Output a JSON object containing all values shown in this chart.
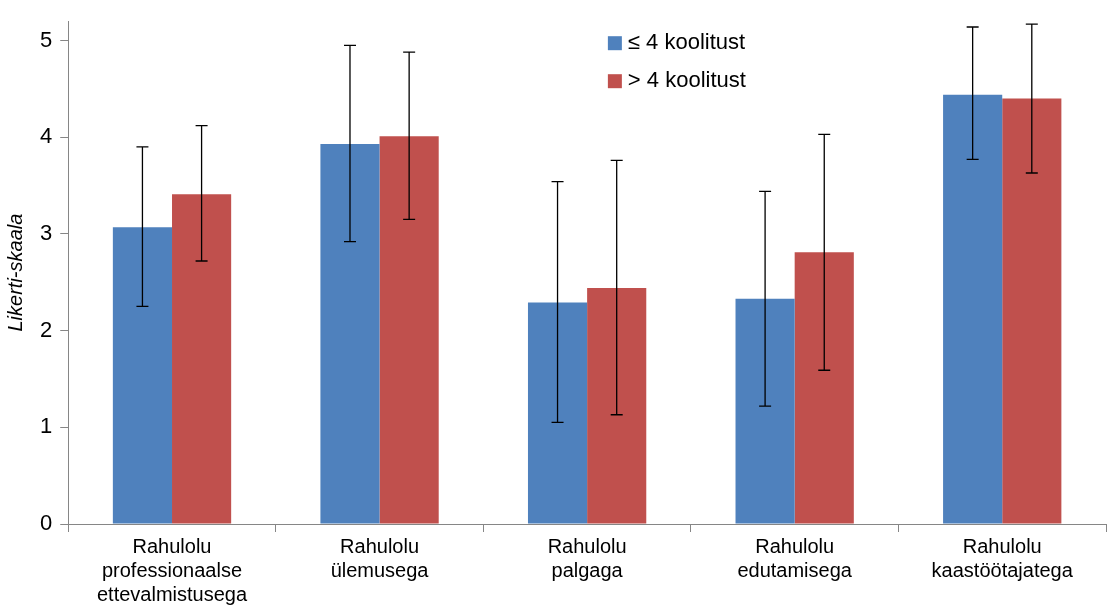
{
  "chart_data": {
    "type": "bar",
    "ylabel": "Likerti-skaala",
    "categories": [
      "Rahulolu professionaalse ettevalmistusega",
      "Rahulolu ülemusega",
      "Rahulolu palgaga",
      "Rahulolu edutamisega",
      "Rahulolu kaastöötajatega"
    ],
    "series": [
      {
        "name": "≤ 4 koolitust",
        "color": "#4f81bd",
        "values": [
          3.07,
          3.93,
          2.29,
          2.33,
          4.44
        ],
        "errors": [
          [
            2.25,
            3.9
          ],
          [
            2.92,
            4.95
          ],
          [
            1.05,
            3.54
          ],
          [
            1.22,
            3.44
          ],
          [
            3.77,
            5.14
          ]
        ]
      },
      {
        "name": "> 4 koolitust",
        "color": "#c0504d",
        "values": [
          3.41,
          4.01,
          2.44,
          2.81,
          4.4
        ],
        "errors": [
          [
            2.72,
            4.12
          ],
          [
            3.15,
            4.88
          ],
          [
            1.13,
            3.76
          ],
          [
            1.59,
            4.03
          ],
          [
            3.63,
            5.17
          ]
        ]
      }
    ],
    "ylim": [
      0,
      5.2
    ],
    "yticks": [
      0,
      1,
      2,
      3,
      4,
      5
    ],
    "grid": false,
    "legend": "top"
  }
}
